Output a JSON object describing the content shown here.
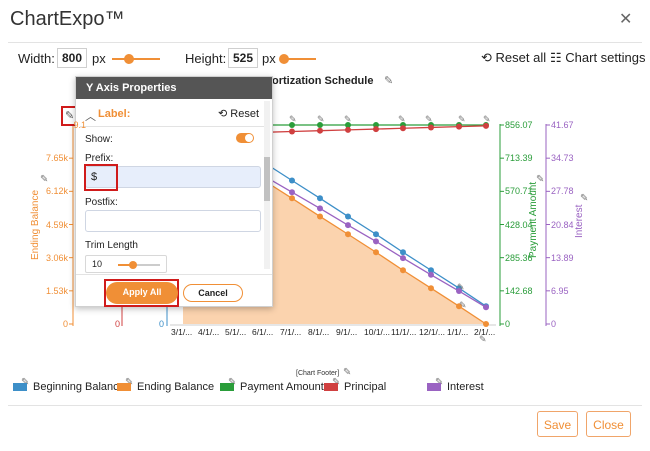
{
  "app": {
    "title": "ChartExpo™"
  },
  "toolbar": {
    "width_label": "Width:",
    "width_value": "800",
    "width_unit": "px",
    "height_label": "Height:",
    "height_value": "525",
    "height_unit": "px",
    "reset_all": "Reset all",
    "chart_settings": "Chart settings",
    "width_fraction": 0.35,
    "height_fraction": 0.12
  },
  "chart": {
    "title_visible": "ortization Schedule",
    "left_axis_title": "Ending Balance",
    "right_axis1_title": "Payment Amount",
    "right_axis2_title": "Interest",
    "left_ticks": [
      "9.1",
      "7.65k",
      "6.12k",
      "4.59k",
      "3.06k",
      "1.53k",
      "0"
    ],
    "right1_ticks": [
      "856.07",
      "713.39",
      "570.71",
      "428.04",
      "285.36",
      "142.68",
      "0"
    ],
    "right2_ticks": [
      "41.67",
      "34.73",
      "27.78",
      "20.84",
      "13.89",
      "6.95",
      "0"
    ],
    "x_ticks": [
      "3/1/...",
      "4/1/...",
      "5/1/...",
      "6/1/...",
      "7/1/...",
      "8/1/...",
      "9/1/...",
      "10/1/...",
      "11/1/...",
      "12/1/...",
      "1/1/...",
      "2/1/..."
    ],
    "inner_zero_left": "0",
    "inner_zero_right": "0",
    "footer_placeholder": "[Chart Footer]",
    "colors": {
      "beginning": "#3d8fc8",
      "ending": "#f08f36",
      "payment": "#2a9d3a",
      "principal": "#d04040",
      "interest": "#9a63c2",
      "area": "#fbd3ae"
    }
  },
  "chart_data": {
    "type": "line",
    "x": [
      "3/1/...",
      "4/1/...",
      "5/1/...",
      "6/1/...",
      "7/1/...",
      "8/1/...",
      "9/1/...",
      "10/1/...",
      "11/1/...",
      "12/1/...",
      "1/1/...",
      "2/1/..."
    ],
    "series": [
      {
        "name": "Ending Balance",
        "values": [
          9100,
          8280,
          7450,
          6620,
          5800,
          4960,
          4140,
          3310,
          2480,
          1650,
          820,
          0
        ]
      },
      {
        "name": "Beginning Balance",
        "values": [
          10000,
          9100,
          8280,
          7450,
          6620,
          5800,
          4960,
          4140,
          3310,
          2480,
          1650,
          820
        ]
      },
      {
        "name": "Payment Amount",
        "values": [
          856.07,
          856.07,
          856.07,
          856.07,
          856.07,
          856.07,
          856.07,
          856.07,
          856.07,
          856.07,
          856.07,
          856.07
        ]
      },
      {
        "name": "Principal",
        "values": [
          814.4,
          817.8,
          821.2,
          824.7,
          828.1,
          831.6,
          835.0,
          838.5,
          842.0,
          845.5,
          849.0,
          852.5
        ]
      },
      {
        "name": "Interest",
        "values": [
          41.67,
          37.9,
          34.5,
          31.0,
          27.6,
          24.2,
          20.7,
          17.3,
          13.8,
          10.3,
          6.9,
          3.5
        ]
      }
    ],
    "left_ylim": [
      0,
      9180
    ],
    "right1_ylim": [
      0,
      856.07
    ],
    "right2_ylim": [
      0,
      41.67
    ]
  },
  "panel": {
    "header": "Y Axis Properties",
    "section": "Label:",
    "reset": "Reset",
    "show_label": "Show:",
    "show_on": true,
    "prefix_label": "Prefix:",
    "prefix_value": "$",
    "postfix_label": "Postfix:",
    "postfix_value": "",
    "trim_label": "Trim Length",
    "trim_value": "10",
    "apply": "Apply All",
    "cancel": "Cancel"
  },
  "legend": [
    {
      "label": "Beginning Balance",
      "color": "#3d8fc8"
    },
    {
      "label": "Ending Balance",
      "color": "#f08f36"
    },
    {
      "label": "Payment Amount",
      "color": "#2a9d3a"
    },
    {
      "label": "Principal",
      "color": "#d04040"
    },
    {
      "label": "Interest",
      "color": "#9a63c2"
    }
  ],
  "footer": {
    "save": "Save",
    "close": "Close"
  }
}
